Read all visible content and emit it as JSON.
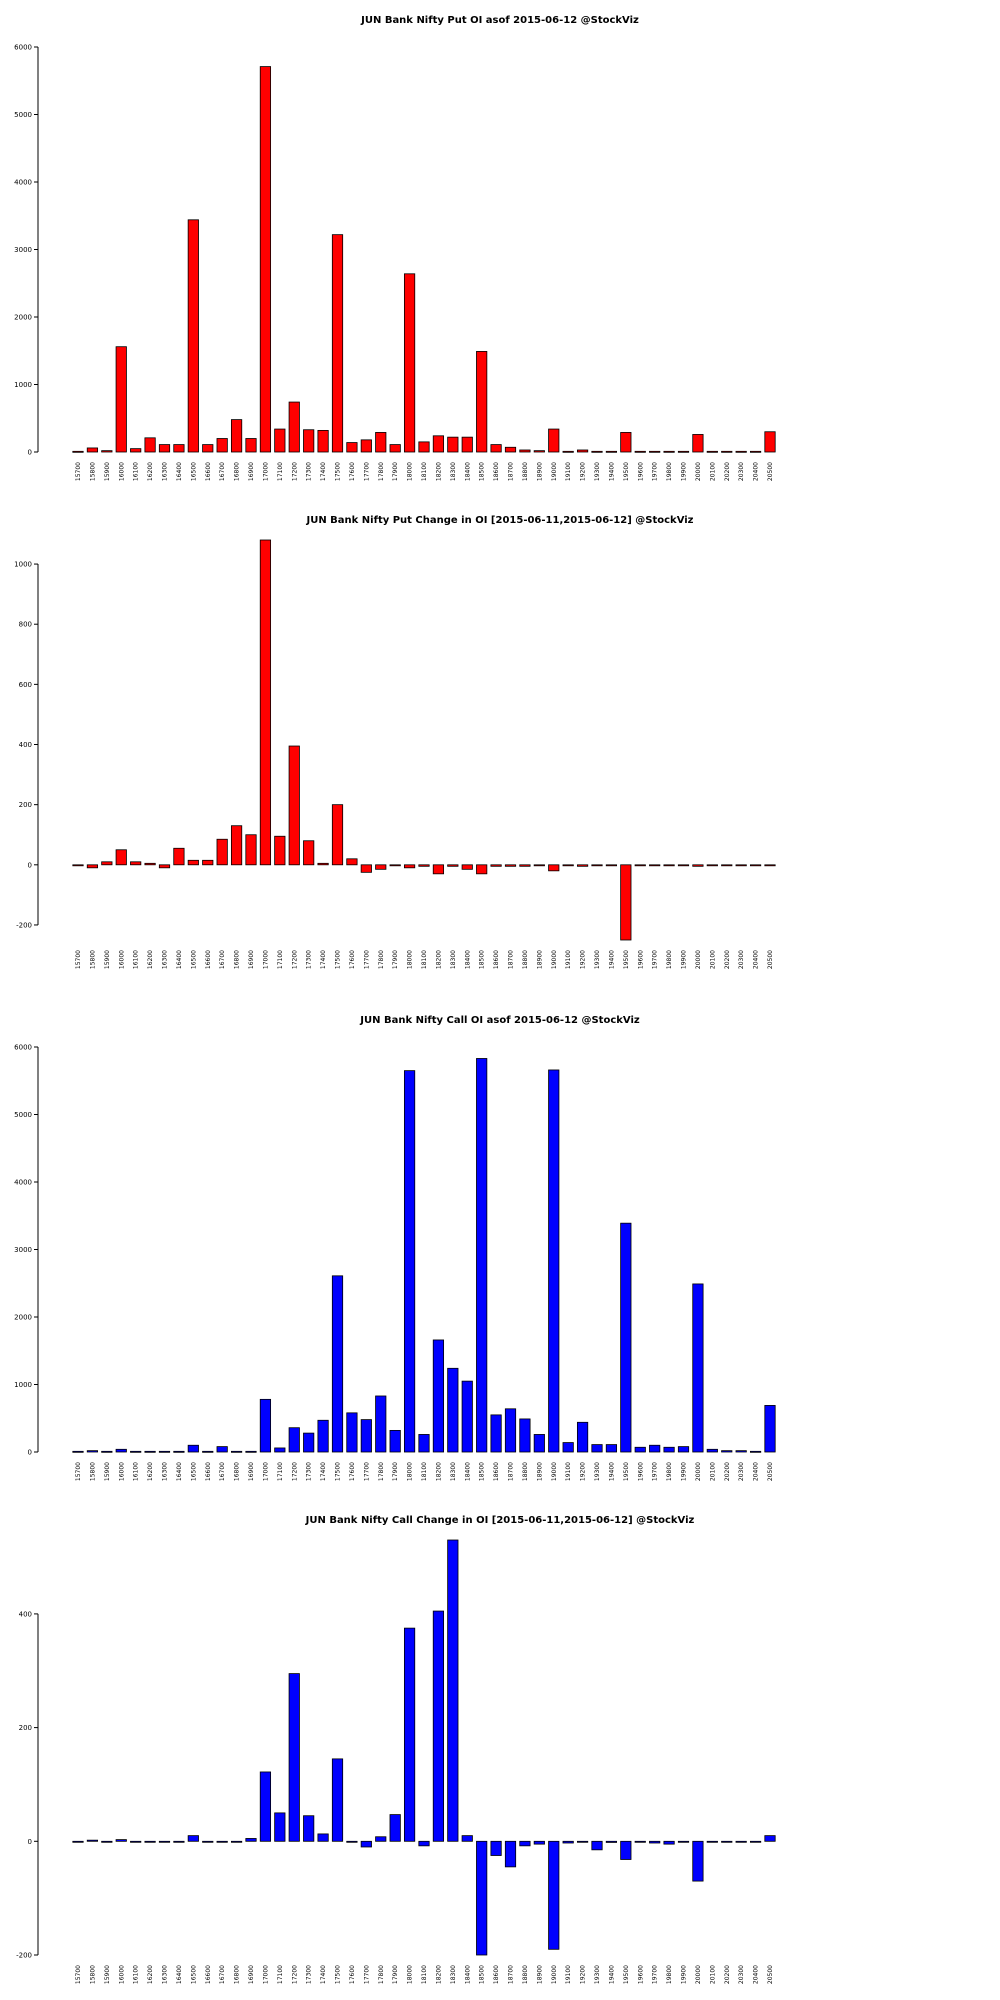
{
  "charts": [
    {
      "title": "JUN Bank Nifty Put OI asof 2015-06-12 @StockViz"
    },
    {
      "title": "JUN Bank Nifty Put Change in OI [2015-06-11,2015-06-12] @StockViz"
    },
    {
      "title": "JUN Bank Nifty Call OI asof 2015-06-12 @StockViz"
    },
    {
      "title": "JUN Bank Nifty Call Change in OI [2015-06-11,2015-06-12] @StockViz"
    }
  ],
  "chart_data": [
    {
      "type": "bar",
      "title": "JUN Bank Nifty Put OI asof 2015-06-12 @StockViz",
      "color": "#ff0000",
      "ylim": [
        0,
        6000
      ],
      "yticks": [
        0,
        1000,
        2000,
        3000,
        4000,
        5000,
        6000
      ],
      "categories": [
        "15700",
        "15800",
        "15900",
        "16000",
        "16100",
        "16200",
        "16300",
        "16400",
        "16500",
        "16600",
        "16700",
        "16800",
        "16900",
        "17000",
        "17100",
        "17200",
        "17300",
        "17400",
        "17500",
        "17600",
        "17700",
        "17800",
        "17900",
        "18000",
        "18100",
        "18200",
        "18300",
        "18400",
        "18500",
        "18600",
        "18700",
        "18800",
        "18900",
        "19000",
        "19100",
        "19200",
        "19300",
        "19400",
        "19500",
        "19600",
        "19700",
        "19800",
        "19900",
        "20000",
        "20100",
        "20200",
        "20300",
        "20400",
        "20500"
      ],
      "values": [
        10,
        60,
        20,
        1560,
        50,
        210,
        110,
        110,
        3440,
        110,
        200,
        480,
        200,
        5710,
        340,
        740,
        330,
        320,
        3220,
        140,
        180,
        290,
        110,
        2640,
        150,
        240,
        220,
        220,
        1490,
        110,
        70,
        30,
        20,
        340,
        10,
        30,
        10,
        10,
        290,
        10,
        10,
        10,
        10,
        260,
        10,
        10,
        10,
        10,
        300
      ]
    },
    {
      "type": "bar",
      "title": "JUN Bank Nifty Put Change in OI [2015-06-11,2015-06-12] @StockViz",
      "color": "#ff0000",
      "ylim": [
        -250,
        1080
      ],
      "yticks": [
        -200,
        0,
        200,
        400,
        600,
        800,
        1000
      ],
      "categories": [
        "15700",
        "15800",
        "15900",
        "16000",
        "16100",
        "16200",
        "16300",
        "16400",
        "16500",
        "16600",
        "16700",
        "16800",
        "16900",
        "17000",
        "17100",
        "17200",
        "17300",
        "17400",
        "17500",
        "17600",
        "17700",
        "17800",
        "17900",
        "18000",
        "18100",
        "18200",
        "18300",
        "18400",
        "18500",
        "18600",
        "18700",
        "18800",
        "18900",
        "19000",
        "19100",
        "19200",
        "19300",
        "19400",
        "19500",
        "19600",
        "19700",
        "19800",
        "19900",
        "20000",
        "20100",
        "20200",
        "20300",
        "20400",
        "20500"
      ],
      "values": [
        0,
        -10,
        10,
        50,
        10,
        5,
        -10,
        55,
        15,
        15,
        85,
        130,
        100,
        1080,
        95,
        395,
        80,
        5,
        200,
        20,
        -25,
        -15,
        0,
        -10,
        -5,
        -30,
        -5,
        -15,
        -30,
        -5,
        -5,
        -5,
        0,
        -20,
        0,
        -5,
        0,
        0,
        -250,
        0,
        0,
        0,
        0,
        -5,
        0,
        0,
        0,
        0,
        0
      ]
    },
    {
      "type": "bar",
      "title": "JUN Bank Nifty Call OI asof 2015-06-12 @StockViz",
      "color": "#0000ff",
      "ylim": [
        0,
        6000
      ],
      "yticks": [
        0,
        1000,
        2000,
        3000,
        4000,
        5000,
        6000
      ],
      "categories": [
        "15700",
        "15800",
        "15900",
        "16000",
        "16100",
        "16200",
        "16300",
        "16400",
        "16500",
        "16600",
        "16700",
        "16800",
        "16900",
        "17000",
        "17100",
        "17200",
        "17300",
        "17400",
        "17500",
        "17600",
        "17700",
        "17800",
        "17900",
        "18000",
        "18100",
        "18200",
        "18300",
        "18400",
        "18500",
        "18600",
        "18700",
        "18800",
        "18900",
        "19000",
        "19100",
        "19200",
        "19300",
        "19400",
        "19500",
        "19600",
        "19700",
        "19800",
        "19900",
        "20000",
        "20100",
        "20200",
        "20300",
        "20400",
        "20500"
      ],
      "values": [
        10,
        20,
        10,
        40,
        10,
        10,
        10,
        10,
        100,
        10,
        80,
        10,
        10,
        780,
        60,
        360,
        280,
        470,
        2610,
        580,
        480,
        830,
        320,
        5650,
        260,
        1660,
        1240,
        1050,
        5830,
        550,
        640,
        490,
        260,
        5660,
        140,
        440,
        110,
        110,
        3390,
        70,
        100,
        70,
        80,
        2490,
        40,
        20,
        20,
        10,
        690
      ]
    },
    {
      "type": "bar",
      "title": "JUN Bank Nifty Call Change in OI [2015-06-11,2015-06-12] @StockViz",
      "color": "#0000ff",
      "ylim": [
        -200,
        530
      ],
      "yticks": [
        -200,
        0,
        200,
        400
      ],
      "categories": [
        "15700",
        "15800",
        "15900",
        "16000",
        "16100",
        "16200",
        "16300",
        "16400",
        "16500",
        "16600",
        "16700",
        "16800",
        "16900",
        "17000",
        "17100",
        "17200",
        "17300",
        "17400",
        "17500",
        "17600",
        "17700",
        "17800",
        "17900",
        "18000",
        "18100",
        "18200",
        "18300",
        "18400",
        "18500",
        "18600",
        "18700",
        "18800",
        "18900",
        "19000",
        "19100",
        "19200",
        "19300",
        "19400",
        "19500",
        "19600",
        "19700",
        "19800",
        "19900",
        "20000",
        "20100",
        "20200",
        "20300",
        "20400",
        "20500"
      ],
      "values": [
        0,
        2,
        0,
        3,
        0,
        0,
        0,
        0,
        10,
        0,
        0,
        0,
        5,
        122,
        50,
        295,
        45,
        13,
        145,
        0,
        -10,
        8,
        47,
        375,
        -8,
        405,
        530,
        10,
        -200,
        -25,
        -45,
        -8,
        -5,
        -190,
        -3,
        0,
        -15,
        -2,
        -32,
        0,
        -3,
        -5,
        0,
        -70,
        0,
        0,
        0,
        0,
        10
      ]
    }
  ]
}
